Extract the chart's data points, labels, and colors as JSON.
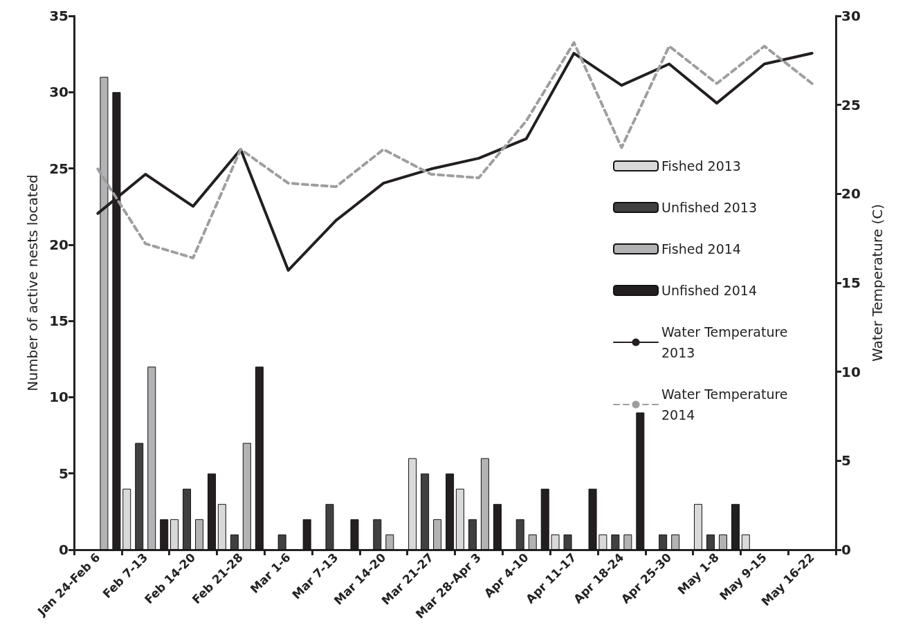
{
  "chart_data": {
    "type": "bar",
    "ylabel": "Number of active nests located",
    "y2label": "Water Temperature (C)",
    "categories": [
      "Jan 24-Feb 6",
      "Feb 7-13",
      "Feb 14-20",
      "Feb 21-28",
      "Mar 1-6",
      "Mar 7-13",
      "Mar 14-20",
      "Mar 21-27",
      "Mar 28-Apr 3",
      "Apr 4-10",
      "Apr 11-17",
      "Apr 18-24",
      "Apr 25-30",
      "May 1-8",
      "May 9-15",
      "May 16-22"
    ],
    "series": [
      {
        "name": "Fished 2013",
        "color": "#d9d9d9",
        "values": [
          0,
          4,
          2,
          3,
          0,
          0,
          0,
          6,
          4,
          0,
          1,
          1,
          0,
          3,
          1,
          0
        ]
      },
      {
        "name": "Unfished 2013",
        "color": "#404040",
        "values": [
          0,
          7,
          4,
          1,
          1,
          3,
          2,
          5,
          2,
          2,
          1,
          1,
          1,
          1,
          0,
          0
        ]
      },
      {
        "name": "Fished 2014",
        "color": "#b3b3b5",
        "values": [
          31,
          12,
          2,
          7,
          0,
          0,
          1,
          2,
          6,
          1,
          0,
          1,
          1,
          1,
          0,
          0
        ]
      },
      {
        "name": "Unfished 2014",
        "color": "#231f20",
        "values": [
          30,
          2,
          5,
          12,
          2,
          2,
          0,
          5,
          3,
          4,
          4,
          9,
          0,
          3,
          0,
          0
        ]
      },
      {
        "name": "Water Temperature 2013",
        "type": "line",
        "axis": "y2",
        "line_style": "solid",
        "color": "#231f20",
        "values": [
          18.9,
          21.1,
          19.3,
          22.5,
          15.7,
          18.5,
          20.6,
          21.4,
          22.0,
          23.1,
          27.9,
          26.1,
          27.3,
          25.1,
          27.3,
          27.9
        ]
      },
      {
        "name": "Water Temperature 2014",
        "type": "line",
        "axis": "y2",
        "line_style": "dashed",
        "color": "#9d9ea0",
        "values": [
          21.4,
          17.2,
          16.4,
          22.5,
          20.6,
          20.4,
          22.5,
          21.1,
          20.9,
          24.1,
          28.5,
          22.6,
          28.3,
          26.2,
          28.3,
          26.2
        ]
      }
    ],
    "ylim": [
      0,
      35
    ],
    "yticks": [
      0,
      5,
      10,
      15,
      20,
      25,
      30,
      35
    ],
    "y2lim": [
      0,
      30
    ],
    "y2ticks": [
      0,
      5,
      10,
      15,
      20,
      25,
      30
    ],
    "grid": false,
    "legend": "right",
    "marker": "none"
  }
}
